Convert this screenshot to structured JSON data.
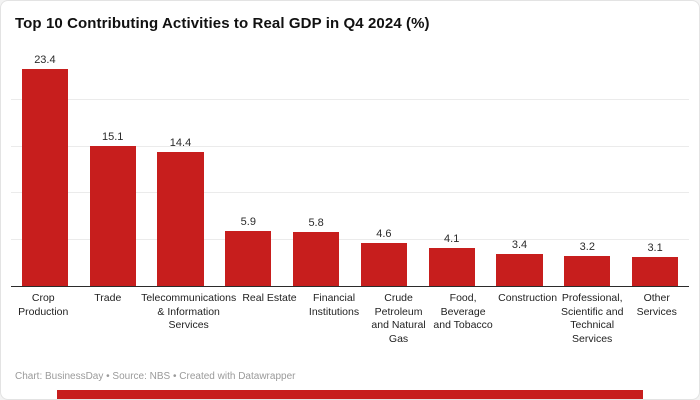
{
  "header": {
    "title": "Top 10 Contributing Activities to Real GDP in Q4 2024 (%)"
  },
  "footer": {
    "credit": "Chart: BusinessDay • Source: NBS • Created with Datawrapper"
  },
  "colors": {
    "bar": "#c71e1d",
    "brand_bar": "#c71e1d",
    "axis": "#2b2b2b",
    "grid": "#ebebeb",
    "footer_text": "#9a9a9a"
  },
  "chart_data": {
    "type": "bar",
    "title": "Top 10 Contributing Activities to Real GDP in Q4 2024 (%)",
    "categories": [
      "Crop Production",
      "Trade",
      "Telecommunications & Information Services",
      "Real Estate",
      "Financial Institutions",
      "Crude Petroleum and Natural Gas",
      "Food, Beverage and Tobacco",
      "Construction",
      "Professional, Scientific and Technical Services",
      "Other Services"
    ],
    "values": [
      23.4,
      15.1,
      14.4,
      5.9,
      5.8,
      4.6,
      4.1,
      3.4,
      3.2,
      3.1
    ],
    "xlabel": "",
    "ylabel": "",
    "ylim": [
      0,
      25
    ],
    "gridline_values": [
      5,
      10,
      15,
      20
    ],
    "grid": "horizontal",
    "legend": "none",
    "value_labels": true
  }
}
